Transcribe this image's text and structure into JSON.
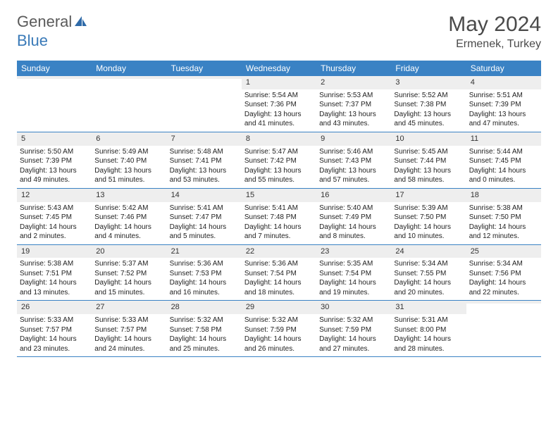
{
  "brand": {
    "part1": "General",
    "part2": "Blue"
  },
  "title": "May 2024",
  "location": "Ermenek, Turkey",
  "colors": {
    "header_bar": "#3a82c4",
    "daynum_bg": "#eeeeee",
    "text": "#4a4a4a",
    "logo_blue": "#3a7ab8"
  },
  "dow": [
    "Sunday",
    "Monday",
    "Tuesday",
    "Wednesday",
    "Thursday",
    "Friday",
    "Saturday"
  ],
  "weeks": [
    [
      {
        "n": "",
        "l1": "",
        "l2": "",
        "l3": "",
        "l4": ""
      },
      {
        "n": "",
        "l1": "",
        "l2": "",
        "l3": "",
        "l4": ""
      },
      {
        "n": "",
        "l1": "",
        "l2": "",
        "l3": "",
        "l4": ""
      },
      {
        "n": "1",
        "l1": "Sunrise: 5:54 AM",
        "l2": "Sunset: 7:36 PM",
        "l3": "Daylight: 13 hours",
        "l4": "and 41 minutes."
      },
      {
        "n": "2",
        "l1": "Sunrise: 5:53 AM",
        "l2": "Sunset: 7:37 PM",
        "l3": "Daylight: 13 hours",
        "l4": "and 43 minutes."
      },
      {
        "n": "3",
        "l1": "Sunrise: 5:52 AM",
        "l2": "Sunset: 7:38 PM",
        "l3": "Daylight: 13 hours",
        "l4": "and 45 minutes."
      },
      {
        "n": "4",
        "l1": "Sunrise: 5:51 AM",
        "l2": "Sunset: 7:39 PM",
        "l3": "Daylight: 13 hours",
        "l4": "and 47 minutes."
      }
    ],
    [
      {
        "n": "5",
        "l1": "Sunrise: 5:50 AM",
        "l2": "Sunset: 7:39 PM",
        "l3": "Daylight: 13 hours",
        "l4": "and 49 minutes."
      },
      {
        "n": "6",
        "l1": "Sunrise: 5:49 AM",
        "l2": "Sunset: 7:40 PM",
        "l3": "Daylight: 13 hours",
        "l4": "and 51 minutes."
      },
      {
        "n": "7",
        "l1": "Sunrise: 5:48 AM",
        "l2": "Sunset: 7:41 PM",
        "l3": "Daylight: 13 hours",
        "l4": "and 53 minutes."
      },
      {
        "n": "8",
        "l1": "Sunrise: 5:47 AM",
        "l2": "Sunset: 7:42 PM",
        "l3": "Daylight: 13 hours",
        "l4": "and 55 minutes."
      },
      {
        "n": "9",
        "l1": "Sunrise: 5:46 AM",
        "l2": "Sunset: 7:43 PM",
        "l3": "Daylight: 13 hours",
        "l4": "and 57 minutes."
      },
      {
        "n": "10",
        "l1": "Sunrise: 5:45 AM",
        "l2": "Sunset: 7:44 PM",
        "l3": "Daylight: 13 hours",
        "l4": "and 58 minutes."
      },
      {
        "n": "11",
        "l1": "Sunrise: 5:44 AM",
        "l2": "Sunset: 7:45 PM",
        "l3": "Daylight: 14 hours",
        "l4": "and 0 minutes."
      }
    ],
    [
      {
        "n": "12",
        "l1": "Sunrise: 5:43 AM",
        "l2": "Sunset: 7:45 PM",
        "l3": "Daylight: 14 hours",
        "l4": "and 2 minutes."
      },
      {
        "n": "13",
        "l1": "Sunrise: 5:42 AM",
        "l2": "Sunset: 7:46 PM",
        "l3": "Daylight: 14 hours",
        "l4": "and 4 minutes."
      },
      {
        "n": "14",
        "l1": "Sunrise: 5:41 AM",
        "l2": "Sunset: 7:47 PM",
        "l3": "Daylight: 14 hours",
        "l4": "and 5 minutes."
      },
      {
        "n": "15",
        "l1": "Sunrise: 5:41 AM",
        "l2": "Sunset: 7:48 PM",
        "l3": "Daylight: 14 hours",
        "l4": "and 7 minutes."
      },
      {
        "n": "16",
        "l1": "Sunrise: 5:40 AM",
        "l2": "Sunset: 7:49 PM",
        "l3": "Daylight: 14 hours",
        "l4": "and 8 minutes."
      },
      {
        "n": "17",
        "l1": "Sunrise: 5:39 AM",
        "l2": "Sunset: 7:50 PM",
        "l3": "Daylight: 14 hours",
        "l4": "and 10 minutes."
      },
      {
        "n": "18",
        "l1": "Sunrise: 5:38 AM",
        "l2": "Sunset: 7:50 PM",
        "l3": "Daylight: 14 hours",
        "l4": "and 12 minutes."
      }
    ],
    [
      {
        "n": "19",
        "l1": "Sunrise: 5:38 AM",
        "l2": "Sunset: 7:51 PM",
        "l3": "Daylight: 14 hours",
        "l4": "and 13 minutes."
      },
      {
        "n": "20",
        "l1": "Sunrise: 5:37 AM",
        "l2": "Sunset: 7:52 PM",
        "l3": "Daylight: 14 hours",
        "l4": "and 15 minutes."
      },
      {
        "n": "21",
        "l1": "Sunrise: 5:36 AM",
        "l2": "Sunset: 7:53 PM",
        "l3": "Daylight: 14 hours",
        "l4": "and 16 minutes."
      },
      {
        "n": "22",
        "l1": "Sunrise: 5:36 AM",
        "l2": "Sunset: 7:54 PM",
        "l3": "Daylight: 14 hours",
        "l4": "and 18 minutes."
      },
      {
        "n": "23",
        "l1": "Sunrise: 5:35 AM",
        "l2": "Sunset: 7:54 PM",
        "l3": "Daylight: 14 hours",
        "l4": "and 19 minutes."
      },
      {
        "n": "24",
        "l1": "Sunrise: 5:34 AM",
        "l2": "Sunset: 7:55 PM",
        "l3": "Daylight: 14 hours",
        "l4": "and 20 minutes."
      },
      {
        "n": "25",
        "l1": "Sunrise: 5:34 AM",
        "l2": "Sunset: 7:56 PM",
        "l3": "Daylight: 14 hours",
        "l4": "and 22 minutes."
      }
    ],
    [
      {
        "n": "26",
        "l1": "Sunrise: 5:33 AM",
        "l2": "Sunset: 7:57 PM",
        "l3": "Daylight: 14 hours",
        "l4": "and 23 minutes."
      },
      {
        "n": "27",
        "l1": "Sunrise: 5:33 AM",
        "l2": "Sunset: 7:57 PM",
        "l3": "Daylight: 14 hours",
        "l4": "and 24 minutes."
      },
      {
        "n": "28",
        "l1": "Sunrise: 5:32 AM",
        "l2": "Sunset: 7:58 PM",
        "l3": "Daylight: 14 hours",
        "l4": "and 25 minutes."
      },
      {
        "n": "29",
        "l1": "Sunrise: 5:32 AM",
        "l2": "Sunset: 7:59 PM",
        "l3": "Daylight: 14 hours",
        "l4": "and 26 minutes."
      },
      {
        "n": "30",
        "l1": "Sunrise: 5:32 AM",
        "l2": "Sunset: 7:59 PM",
        "l3": "Daylight: 14 hours",
        "l4": "and 27 minutes."
      },
      {
        "n": "31",
        "l1": "Sunrise: 5:31 AM",
        "l2": "Sunset: 8:00 PM",
        "l3": "Daylight: 14 hours",
        "l4": "and 28 minutes."
      },
      {
        "n": "",
        "l1": "",
        "l2": "",
        "l3": "",
        "l4": ""
      }
    ]
  ]
}
